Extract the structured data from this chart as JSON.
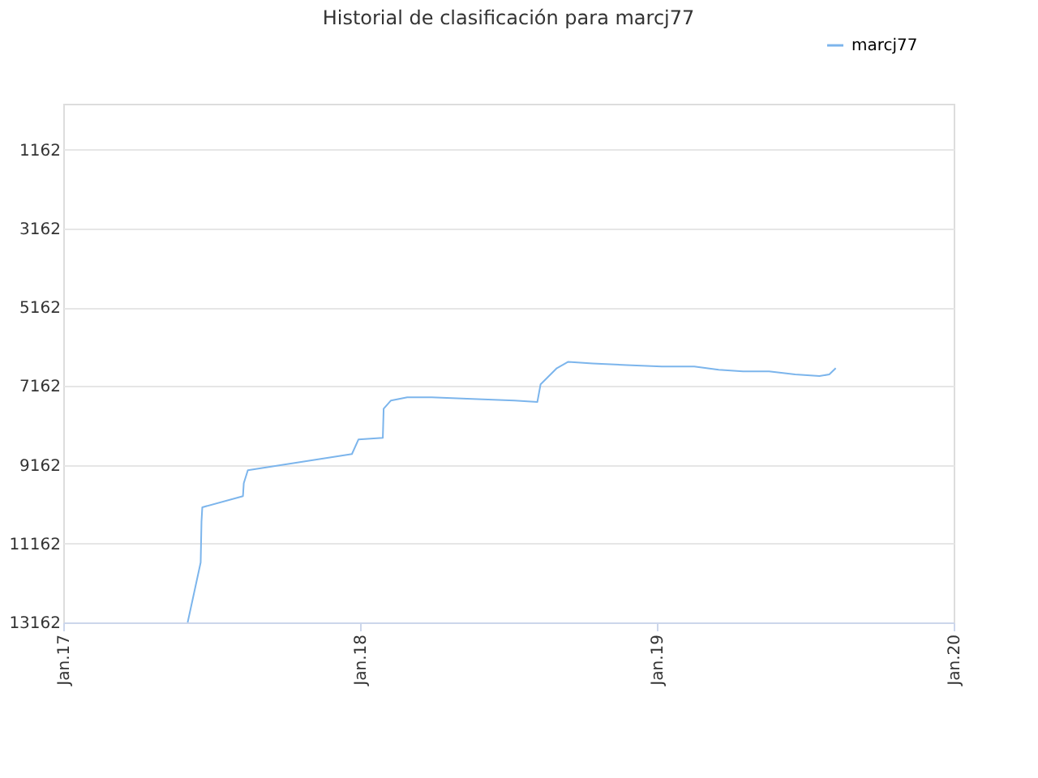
{
  "chart_data": {
    "type": "line",
    "title": "Historial de clasificación para marcj77",
    "x": [
      "2017-06-03",
      "2017-06-19",
      "2017-06-20",
      "2017-06-21",
      "2017-08-10",
      "2017-08-11",
      "2017-08-16",
      "2017-12-22",
      "2017-12-30",
      "2018-01-29",
      "2018-01-30",
      "2018-02-08",
      "2018-02-28",
      "2018-03-30",
      "2018-05-19",
      "2018-07-10",
      "2018-08-07",
      "2018-08-11",
      "2018-08-31",
      "2018-09-14",
      "2018-10-14",
      "2018-11-25",
      "2019-01-07",
      "2019-02-16",
      "2019-03-18",
      "2019-04-17",
      "2019-05-19",
      "2019-06-20",
      "2019-07-20",
      "2019-08-01",
      "2019-08-09"
    ],
    "series": [
      {
        "name": "marcj77",
        "color": "#7cb5ec",
        "values": [
          13162,
          11640,
          10610,
          10240,
          9960,
          9630,
          9300,
          8890,
          8520,
          8480,
          7740,
          7530,
          7450,
          7450,
          7490,
          7530,
          7570,
          7120,
          6710,
          6550,
          6590,
          6630,
          6670,
          6670,
          6750,
          6790,
          6790,
          6870,
          6910,
          6870,
          6710
        ]
      }
    ],
    "xlim": [
      "2017-01-01",
      "2020-01-01"
    ],
    "xticks": [
      {
        "value": "2017-01-01",
        "label": "Jan.17"
      },
      {
        "value": "2018-01-01",
        "label": "Jan.18"
      },
      {
        "value": "2019-01-01",
        "label": "Jan.19"
      },
      {
        "value": "2020-01-01",
        "label": "Jan.20"
      }
    ],
    "ylim": [
      13162,
      0
    ],
    "yticks": [
      1162,
      3162,
      5162,
      7162,
      9162,
      11162,
      13162
    ],
    "grid": "y",
    "legend": "top right",
    "marker": "none",
    "line_style": "solid"
  }
}
